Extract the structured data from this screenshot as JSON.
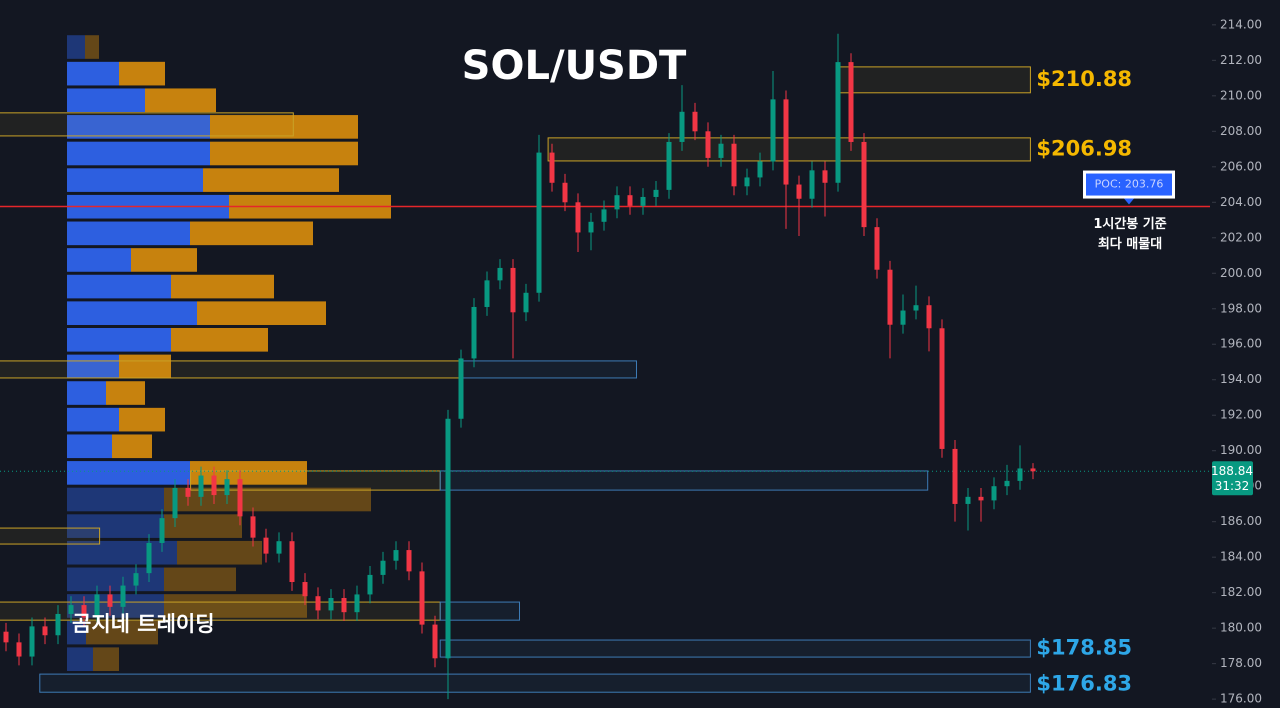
{
  "chart_data": {
    "type": "candlestick",
    "title": "SOL/USDT",
    "watermark": "곰지네 트레이딩",
    "ylim": [
      175.5,
      215.4
    ],
    "yticks": [
      {
        "value": 214,
        "label": "214.00"
      },
      {
        "value": 212,
        "label": "212.00"
      },
      {
        "value": 210,
        "label": "210.00"
      },
      {
        "value": 208,
        "label": "208.00"
      },
      {
        "value": 206,
        "label": "206.00"
      },
      {
        "value": 204,
        "label": "204.00"
      },
      {
        "value": 202,
        "label": "202.00"
      },
      {
        "value": 200,
        "label": "200.00"
      },
      {
        "value": 198,
        "label": "198.00"
      },
      {
        "value": 196,
        "label": "196.00"
      },
      {
        "value": 194,
        "label": "194.00"
      },
      {
        "value": 192,
        "label": "192.00"
      },
      {
        "value": 190,
        "label": "190.00"
      },
      {
        "value": 188,
        "label": "188.00"
      },
      {
        "value": 186,
        "label": "186.00"
      },
      {
        "value": 184,
        "label": "184.00"
      },
      {
        "value": 182,
        "label": "182.00"
      },
      {
        "value": 180,
        "label": "180.00"
      },
      {
        "value": 178,
        "label": "178.00"
      },
      {
        "value": 176,
        "label": "176.00"
      }
    ],
    "grid": false,
    "up_color": "#089981",
    "down_color": "#f23645",
    "open": [
      179.8,
      179.2,
      178.4,
      180.1,
      179.6,
      180.8,
      181.3,
      180.6,
      181.9,
      181.2,
      182.4,
      183.1,
      184.8,
      186.2,
      187.9,
      187.4,
      188.6,
      187.5,
      188.4,
      186.3,
      185.1,
      184.2,
      184.9,
      182.6,
      181.8,
      181.0,
      181.7,
      180.9,
      181.9,
      183.0,
      183.8,
      184.4,
      183.2,
      180.2,
      178.3,
      191.8,
      195.2,
      198.1,
      199.6,
      200.3,
      197.8,
      198.9,
      206.8,
      205.1,
      204.0,
      202.3,
      202.9,
      203.6,
      204.4,
      203.8,
      204.3,
      204.7,
      207.4,
      209.1,
      208.0,
      206.5,
      207.3,
      204.9,
      205.4,
      206.3,
      209.8,
      205.0,
      204.2,
      205.8,
      205.1,
      211.9,
      207.4,
      202.6,
      200.2,
      197.1,
      197.9,
      198.2,
      196.9,
      190.1,
      187.0,
      187.4,
      187.2,
      188.0,
      188.3,
      189.0
    ],
    "high": [
      180.3,
      179.7,
      180.6,
      180.6,
      181.3,
      181.8,
      181.8,
      182.4,
      182.4,
      182.9,
      183.6,
      185.3,
      186.7,
      188.4,
      188.4,
      189.1,
      189.1,
      188.9,
      188.9,
      186.8,
      185.6,
      185.4,
      185.4,
      183.1,
      182.3,
      182.2,
      182.2,
      182.4,
      183.5,
      184.3,
      184.9,
      184.9,
      183.7,
      180.7,
      192.3,
      195.7,
      198.6,
      200.1,
      200.8,
      200.8,
      199.4,
      207.8,
      207.3,
      205.6,
      204.5,
      203.4,
      204.1,
      204.9,
      204.9,
      204.8,
      205.2,
      207.9,
      210.6,
      209.6,
      208.5,
      207.8,
      207.8,
      205.9,
      206.8,
      211.4,
      210.3,
      205.5,
      206.3,
      206.3,
      213.5,
      212.4,
      207.9,
      203.1,
      200.7,
      198.8,
      199.3,
      198.7,
      197.4,
      190.6,
      187.9,
      187.9,
      188.5,
      189.2,
      190.3,
      189.3
    ],
    "low": [
      178.7,
      177.9,
      177.9,
      179.1,
      179.1,
      180.3,
      180.1,
      180.1,
      180.7,
      180.7,
      181.9,
      182.6,
      184.3,
      185.7,
      186.9,
      186.9,
      187.0,
      187.0,
      185.8,
      184.6,
      183.7,
      183.7,
      182.1,
      181.3,
      180.5,
      180.5,
      180.4,
      180.4,
      181.4,
      182.5,
      183.3,
      182.7,
      179.7,
      177.8,
      176.0,
      191.3,
      194.7,
      197.6,
      199.1,
      195.2,
      197.3,
      198.4,
      204.6,
      203.5,
      201.2,
      201.3,
      202.4,
      203.1,
      203.3,
      203.3,
      203.8,
      204.2,
      206.9,
      207.5,
      206.0,
      206.0,
      204.4,
      204.4,
      204.9,
      205.8,
      202.5,
      202.1,
      203.7,
      203.2,
      204.6,
      206.9,
      202.1,
      199.7,
      195.2,
      196.6,
      197.4,
      195.6,
      189.6,
      186.0,
      185.5,
      186.0,
      186.7,
      187.5,
      187.8,
      188.4
    ],
    "close": [
      179.2,
      178.4,
      180.1,
      179.6,
      180.8,
      181.3,
      180.6,
      181.9,
      181.2,
      182.4,
      183.1,
      184.8,
      186.2,
      187.9,
      187.4,
      188.6,
      187.5,
      188.4,
      186.3,
      185.1,
      184.2,
      184.9,
      182.6,
      181.8,
      181.0,
      181.7,
      180.9,
      181.9,
      183.0,
      183.8,
      184.4,
      183.2,
      180.2,
      178.3,
      191.8,
      195.2,
      198.1,
      199.6,
      200.3,
      197.8,
      198.9,
      206.8,
      205.1,
      204.0,
      202.3,
      202.9,
      203.6,
      204.4,
      203.8,
      204.3,
      204.7,
      207.4,
      209.1,
      208.0,
      206.5,
      207.3,
      204.9,
      205.4,
      206.3,
      209.8,
      205.0,
      204.2,
      205.8,
      205.1,
      211.9,
      207.4,
      202.6,
      200.2,
      197.1,
      197.9,
      198.2,
      196.9,
      190.1,
      187.0,
      187.4,
      187.2,
      188.0,
      188.3,
      189.0,
      188.84
    ],
    "profile": {
      "bins": [
        213.5,
        212,
        210.5,
        209,
        207.5,
        206,
        204.5,
        203,
        201.5,
        200,
        198.5,
        197,
        195.5,
        194,
        192.5,
        191,
        189.5,
        188,
        186.5,
        185,
        183.5,
        182,
        180.5,
        179,
        177.5
      ],
      "buy": [
        18,
        52,
        78,
        143,
        143,
        136,
        162,
        123,
        64,
        104,
        130,
        104,
        52,
        39,
        52,
        45,
        123,
        97,
        97,
        110,
        97,
        97,
        19,
        26
      ],
      "sell": [
        14,
        46,
        71,
        148,
        148,
        136,
        162,
        123,
        66,
        103,
        129,
        97,
        52,
        39,
        46,
        40,
        117,
        207,
        78,
        85,
        72,
        143,
        72,
        26
      ],
      "buy_color": "#2d5fe0",
      "sell_color": "#c7820e",
      "value_area": [
        188,
        212
      ]
    },
    "zones": [
      {
        "top": 211.63,
        "bottom": 210.17,
        "from": 64,
        "to": 78.8,
        "color": "#c9a227",
        "value": 210.88,
        "label": "$210.88",
        "label_color": "#f5b800"
      },
      {
        "top": 207.63,
        "bottom": 206.33,
        "from": 41.7,
        "to": 78.8,
        "color": "#c9a227",
        "value": 206.98,
        "label": "$206.98",
        "label_color": "#f5b800"
      },
      {
        "top": 209.04,
        "bottom": 207.74,
        "from": -0.5,
        "to": 22.1,
        "color": "#c9a227"
      },
      {
        "top": 195.06,
        "bottom": 194.1,
        "from": -0.5,
        "to": 34.9,
        "color": "#c9a227"
      },
      {
        "top": 195.06,
        "bottom": 194.1,
        "from": 34.9,
        "to": 48.5,
        "color": "#3d7bb5"
      },
      {
        "top": 188.86,
        "bottom": 187.78,
        "from": 14.2,
        "to": 33.4,
        "color": "#c9a227"
      },
      {
        "top": 188.86,
        "bottom": 187.78,
        "from": 33.4,
        "to": 70.9,
        "color": "#3d7bb5"
      },
      {
        "top": 185.64,
        "bottom": 184.74,
        "from": -0.5,
        "to": 7.2,
        "color": "#c9a227"
      },
      {
        "top": 181.47,
        "bottom": 180.45,
        "from": -0.5,
        "to": 33.4,
        "color": "#c9a227"
      },
      {
        "top": 181.47,
        "bottom": 180.45,
        "from": 33.4,
        "to": 39.5,
        "color": "#3d7bb5"
      },
      {
        "top": 179.33,
        "bottom": 178.37,
        "from": 33.4,
        "to": 78.8,
        "color": "#3d7bb5",
        "value": 178.85,
        "label": "$178.85",
        "label_color": "#2ea7e8"
      },
      {
        "top": 177.41,
        "bottom": 176.39,
        "from": 2.6,
        "to": 78.8,
        "color": "#3d7bb5",
        "value": 176.83,
        "label": "$176.83",
        "label_color": "#2ea7e8"
      }
    ],
    "poc": {
      "value": 203.76,
      "label": "POC: 203.76",
      "color": "#e5262a",
      "note": [
        "1시간봉 기준",
        "최다 매물대"
      ]
    },
    "last_price": {
      "value": 188.84,
      "timer": "31:32",
      "color": "#089981"
    }
  }
}
